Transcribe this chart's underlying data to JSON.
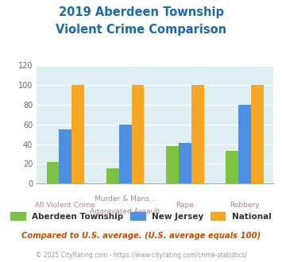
{
  "title_line1": "2019 Aberdeen Township",
  "title_line2": "Violent Crime Comparison",
  "cat_labels_top": [
    "",
    "Murder & Mans...",
    "",
    ""
  ],
  "cat_labels_bottom": [
    "All Violent Crime",
    "Aggravated Assault",
    "Rape",
    "Robbery"
  ],
  "series": {
    "Aberdeen Township": [
      22,
      15,
      38,
      33
    ],
    "New Jersey": [
      55,
      60,
      41,
      80
    ],
    "National": [
      100,
      100,
      100,
      100
    ]
  },
  "colors": {
    "Aberdeen Township": "#7dc242",
    "New Jersey": "#4f8fe0",
    "National": "#f5a623"
  },
  "ylim": [
    0,
    120
  ],
  "yticks": [
    0,
    20,
    40,
    60,
    80,
    100,
    120
  ],
  "background_color": "#deeef3",
  "title_color": "#1a6aad",
  "xtick_color": "#aa8888",
  "ytick_color": "#666666",
  "grid_color": "#ffffff",
  "footer_text": "Compared to U.S. average. (U.S. average equals 100)",
  "copyright_text": "© 2025 CityRating.com - https://www.cityrating.com/crime-statistics/",
  "footer_color": "#c05000",
  "copyright_color": "#9999aa"
}
